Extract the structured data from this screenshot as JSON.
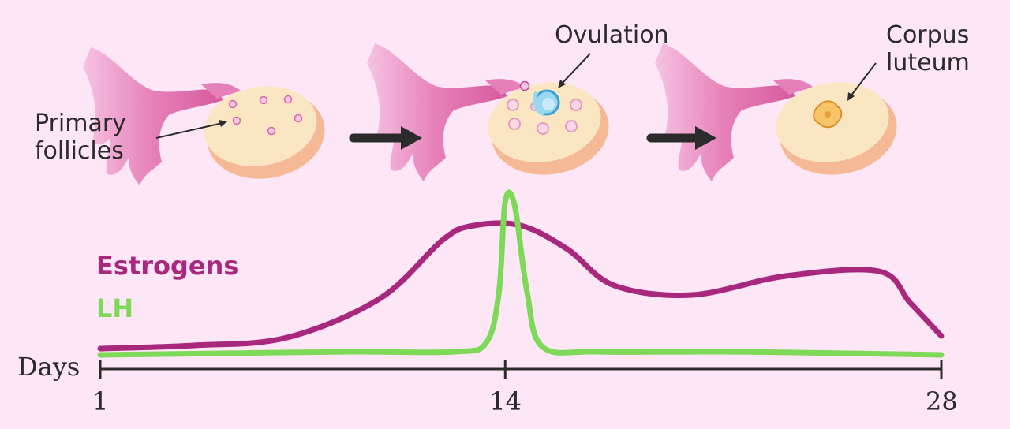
{
  "labels": {
    "primary_follicles_line1": "Primary",
    "primary_follicles_line2": "follicles",
    "ovulation": "Ovulation",
    "corpus_luteum_line1": "Corpus",
    "corpus_luteum_line2": "luteum"
  },
  "colors": {
    "background": "#fde6f6",
    "estrogens": "#a8287e",
    "lh": "#7dd957",
    "axis": "#2b2b2b",
    "tube": "#e680b8",
    "ovary_face": "#fbe6c4",
    "ovary_rim": "#f6b996",
    "arrow": "#2b2b2b"
  },
  "chart_data": {
    "type": "line",
    "xlabel": "Days",
    "x_ticks": [
      1,
      14,
      28
    ],
    "xlim": [
      1,
      28
    ],
    "ylim": [
      0,
      1
    ],
    "series": [
      {
        "name": "Estrogens",
        "x": [
          1,
          4,
          7,
          10,
          12,
          13,
          14.5,
          16,
          17.5,
          20,
          23,
          26,
          27,
          28
        ],
        "y": [
          0.04,
          0.06,
          0.11,
          0.36,
          0.73,
          0.82,
          0.82,
          0.67,
          0.44,
          0.38,
          0.5,
          0.53,
          0.33,
          0.12
        ]
      },
      {
        "name": "LH",
        "x": [
          1,
          5,
          9,
          12.4,
          13.4,
          13.8,
          14,
          14.3,
          14.7,
          15.2,
          17,
          21,
          25,
          28
        ],
        "y": [
          0.0,
          0.01,
          0.02,
          0.02,
          0.08,
          0.4,
          0.97,
          0.95,
          0.4,
          0.05,
          0.02,
          0.02,
          0.01,
          0.0
        ]
      }
    ]
  }
}
